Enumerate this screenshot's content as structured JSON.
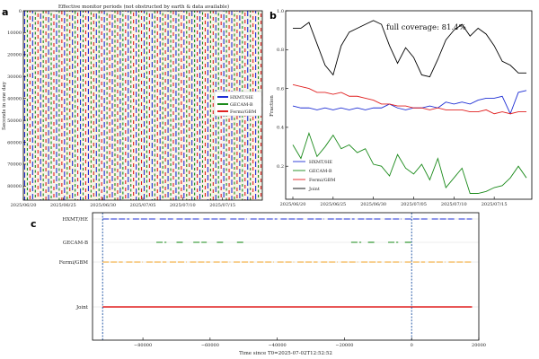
{
  "panels": {
    "a_label": "a",
    "b_label": "b",
    "c_label": "c"
  },
  "chart_data": [
    {
      "panel": "a",
      "type": "heatmap",
      "title": "Effective monitor periods (not obstructed by earth & data available)",
      "xlabel": "",
      "ylabel": "Seconds in one day",
      "xticks": [
        "2025/06/20",
        "2025/06/25",
        "2025/06/30",
        "2025/07/05",
        "2025/07/10",
        "2025/07/15"
      ],
      "yticks": [
        0,
        10000,
        20000,
        30000,
        40000,
        50000,
        60000,
        70000,
        80000
      ],
      "ylim": [
        86400,
        0
      ],
      "days": 30,
      "legend": [
        {
          "name": "HXMT/HE",
          "color": "#1f2fd4"
        },
        {
          "name": "GECAM-B",
          "color": "#1a8a1a"
        },
        {
          "name": "Fermi/GBM",
          "color": "#e02020"
        }
      ],
      "legend_position": "center-right",
      "background_stripe_colors": [
        "#fde9c7",
        "#e3efd9",
        "#fbe3e3"
      ]
    },
    {
      "panel": "b",
      "type": "line",
      "xlabel": "",
      "ylabel": "Fraction",
      "x": [
        "2025/06/20",
        "2025/06/21",
        "2025/06/22",
        "2025/06/23",
        "2025/06/24",
        "2025/06/25",
        "2025/06/26",
        "2025/06/27",
        "2025/06/28",
        "2025/06/29",
        "2025/06/30",
        "2025/07/01",
        "2025/07/02",
        "2025/07/03",
        "2025/07/04",
        "2025/07/05",
        "2025/07/06",
        "2025/07/07",
        "2025/07/08",
        "2025/07/09",
        "2025/07/10",
        "2025/07/11",
        "2025/07/12",
        "2025/07/13",
        "2025/07/14",
        "2025/07/15",
        "2025/07/16",
        "2025/07/17",
        "2025/07/18",
        "2025/07/19"
      ],
      "xticks": [
        "2025/06/20",
        "2025/06/25",
        "2025/06/30",
        "2025/07/05",
        "2025/07/10",
        "2025/07/15"
      ],
      "yticks": [
        0.2,
        0.4,
        0.6,
        0.8,
        1.0
      ],
      "ylim": [
        0.03,
        1.0
      ],
      "annotation": "full coverage: 81.4%",
      "series": [
        {
          "name": "HXMT/HE",
          "color": "#1f2fd4",
          "values": [
            0.51,
            0.5,
            0.5,
            0.49,
            0.5,
            0.49,
            0.5,
            0.49,
            0.5,
            0.49,
            0.5,
            0.5,
            0.52,
            0.5,
            0.49,
            0.5,
            0.5,
            0.51,
            0.5,
            0.53,
            0.52,
            0.53,
            0.52,
            0.54,
            0.55,
            0.55,
            0.56,
            0.47,
            0.58,
            0.59
          ]
        },
        {
          "name": "GECAM-B",
          "color": "#1a8a1a",
          "values": [
            0.31,
            0.24,
            0.37,
            0.25,
            0.3,
            0.36,
            0.29,
            0.31,
            0.27,
            0.29,
            0.21,
            0.2,
            0.15,
            0.26,
            0.19,
            0.16,
            0.21,
            0.13,
            0.24,
            0.09,
            0.14,
            0.19,
            0.06,
            0.06,
            0.07,
            0.09,
            0.1,
            0.14,
            0.2,
            0.14
          ]
        },
        {
          "name": "Fermi/GBM",
          "color": "#e02020",
          "values": [
            0.62,
            0.61,
            0.6,
            0.58,
            0.58,
            0.57,
            0.58,
            0.56,
            0.56,
            0.55,
            0.54,
            0.52,
            0.52,
            0.51,
            0.51,
            0.5,
            0.5,
            0.49,
            0.5,
            0.49,
            0.49,
            0.49,
            0.48,
            0.48,
            0.49,
            0.47,
            0.48,
            0.47,
            0.48,
            0.48
          ]
        },
        {
          "name": "Joint",
          "color": "#000000",
          "values": [
            0.91,
            0.91,
            0.94,
            0.83,
            0.72,
            0.67,
            0.82,
            0.89,
            0.91,
            0.93,
            0.95,
            0.93,
            0.82,
            0.73,
            0.81,
            0.76,
            0.67,
            0.66,
            0.75,
            0.85,
            0.9,
            0.93,
            0.87,
            0.91,
            0.88,
            0.82,
            0.74,
            0.72,
            0.68,
            0.68
          ]
        }
      ],
      "legend_position": "lower-left"
    },
    {
      "panel": "c",
      "type": "scatter",
      "xlabel": "Time since T0=2025-07-02T12:52:52",
      "xlim": [
        -95000,
        20000
      ],
      "xticks": [
        -80000,
        -60000,
        -40000,
        -20000,
        0,
        20000
      ],
      "vlines": [
        -92000,
        0
      ],
      "rows": [
        {
          "name": "HXMT/HE",
          "color": "#1f2fd4",
          "segments": [
            [
              -92000,
              -84000
            ],
            [
              -83000,
              -76000
            ],
            [
              -75000,
              -71000
            ],
            [
              -70000,
              -63000
            ],
            [
              -62000,
              -55000
            ],
            [
              -54000,
              -49000
            ],
            [
              -48000,
              -40000
            ],
            [
              -39000,
              -32000
            ],
            [
              -31000,
              -26000
            ],
            [
              -25000,
              -17000
            ],
            [
              -16000,
              -9000
            ],
            [
              -8000,
              -3000
            ],
            [
              -2000,
              5000
            ],
            [
              6000,
              13000
            ],
            [
              14000,
              18000
            ]
          ]
        },
        {
          "name": "GECAM-B",
          "color": "#1a8a1a",
          "segments": [
            [
              -76000,
              -73000
            ],
            [
              -70000,
              -68000
            ],
            [
              -65000,
              -61000
            ],
            [
              -58000,
              -56000
            ],
            [
              -52000,
              -50000
            ],
            [
              -18000,
              -15000
            ],
            [
              -13000,
              -11000
            ],
            [
              -7000,
              -4000
            ],
            [
              -2000,
              0
            ]
          ]
        },
        {
          "name": "Fermi/GBM",
          "color": "#f0a020",
          "segments": [
            [
              -92000,
              -86000
            ],
            [
              -85000,
              -80000
            ],
            [
              -79000,
              -73000
            ],
            [
              -72000,
              -67000
            ],
            [
              -66000,
              -60000
            ],
            [
              -59000,
              -54000
            ],
            [
              -53000,
              -47000
            ],
            [
              -46000,
              -41000
            ],
            [
              -40000,
              -35000
            ],
            [
              -34000,
              -28000
            ],
            [
              -27000,
              -22000
            ],
            [
              -21000,
              -16000
            ],
            [
              -15000,
              -9000
            ],
            [
              -8000,
              -3000
            ],
            [
              -2000,
              4000
            ],
            [
              5000,
              10000
            ],
            [
              11000,
              18000
            ]
          ]
        },
        {
          "name": "Joint",
          "color": "#e02020",
          "segments": [
            [
              -92000,
              18000
            ]
          ]
        }
      ]
    }
  ]
}
